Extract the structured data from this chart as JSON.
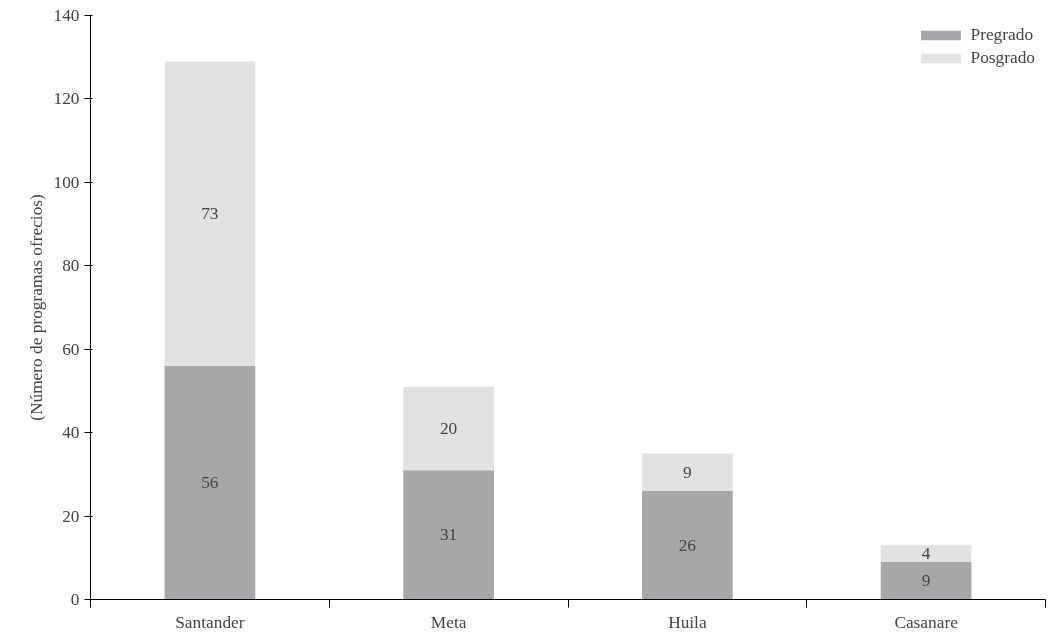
{
  "chart_data": {
    "type": "bar",
    "stacked": true,
    "ylabel": "(Número de programas ofrecios)",
    "categories": [
      "Santander",
      "Meta",
      "Huila",
      "Casanare"
    ],
    "series": [
      {
        "name": "Pregrado",
        "color": "#a7a7aa",
        "values": [
          56,
          31,
          26,
          9
        ]
      },
      {
        "name": "Posgrado",
        "color": "#e1e2e4",
        "values": [
          73,
          20,
          9,
          4
        ]
      }
    ],
    "ylim": [
      0,
      140
    ],
    "yticks": [
      0,
      20,
      40,
      60,
      80,
      100,
      120,
      140
    ],
    "grid": false,
    "legend": "top right",
    "data_labels": true
  }
}
